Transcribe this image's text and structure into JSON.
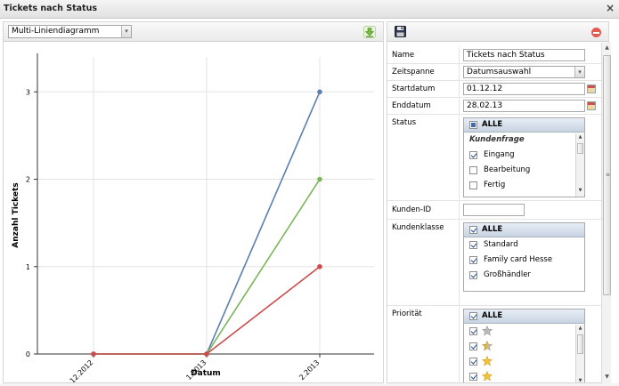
{
  "window": {
    "title": "Tickets nach Status",
    "close_glyph": "×"
  },
  "left_toolbar": {
    "chart_type_value": "Multi-Liniendiagramm",
    "download_icon": "download-arrow-icon",
    "dropdown_arrow": "▾"
  },
  "right_toolbar": {
    "save_icon": "floppy-disk-icon",
    "cancel_icon": "red-minus-circle-icon"
  },
  "form": {
    "name": {
      "label": "Name",
      "value": "Tickets nach Status"
    },
    "zeitspanne": {
      "label": "Zeitspanne",
      "value": "Datumsauswahl"
    },
    "startdatum": {
      "label": "Startdatum",
      "value": "01.12.12"
    },
    "enddatum": {
      "label": "Enddatum",
      "value": "28.02.13"
    },
    "status": {
      "label": "Status",
      "all_label": "ALLE",
      "group_label": "Kundenfrage",
      "items": [
        {
          "label": "Eingang",
          "checked": true
        },
        {
          "label": "Bearbeitung",
          "checked": false
        },
        {
          "label": "Fertig",
          "checked": false
        }
      ]
    },
    "kunden_id": {
      "label": "Kunden-ID",
      "value": ""
    },
    "kundenklasse": {
      "label": "Kundenklasse",
      "all_label": "ALLE",
      "items": [
        {
          "label": "Standard",
          "checked": true
        },
        {
          "label": "Family card Hesse",
          "checked": true
        },
        {
          "label": "Großhändler",
          "checked": true
        }
      ]
    },
    "prioritaet": {
      "label": "Priorität",
      "all_label": "ALLE",
      "items": [
        {
          "star": "gray",
          "checked": true
        },
        {
          "star": "gold-gray",
          "checked": true
        },
        {
          "star": "gold",
          "checked": true
        },
        {
          "star": "gold",
          "checked": true
        }
      ]
    }
  },
  "colors": {
    "blue": "#5b7fb0",
    "green": "#7cb55a",
    "red": "#cc4b4b"
  },
  "chart_data": {
    "type": "line",
    "xlabel": "Datum",
    "ylabel": "Anzahl Tickets",
    "categories": [
      "12.2012",
      "1.2013",
      "2.2013"
    ],
    "ylim": [
      0,
      3.4
    ],
    "yticks": [
      0,
      1,
      2,
      3
    ],
    "grid": true,
    "series": [
      {
        "color": "#5b7fb0",
        "values": [
          0,
          0,
          3
        ]
      },
      {
        "color": "#7cb55a",
        "values": [
          0,
          0,
          2
        ]
      },
      {
        "color": "#cc4b4b",
        "values": [
          0,
          0,
          1
        ]
      }
    ]
  }
}
